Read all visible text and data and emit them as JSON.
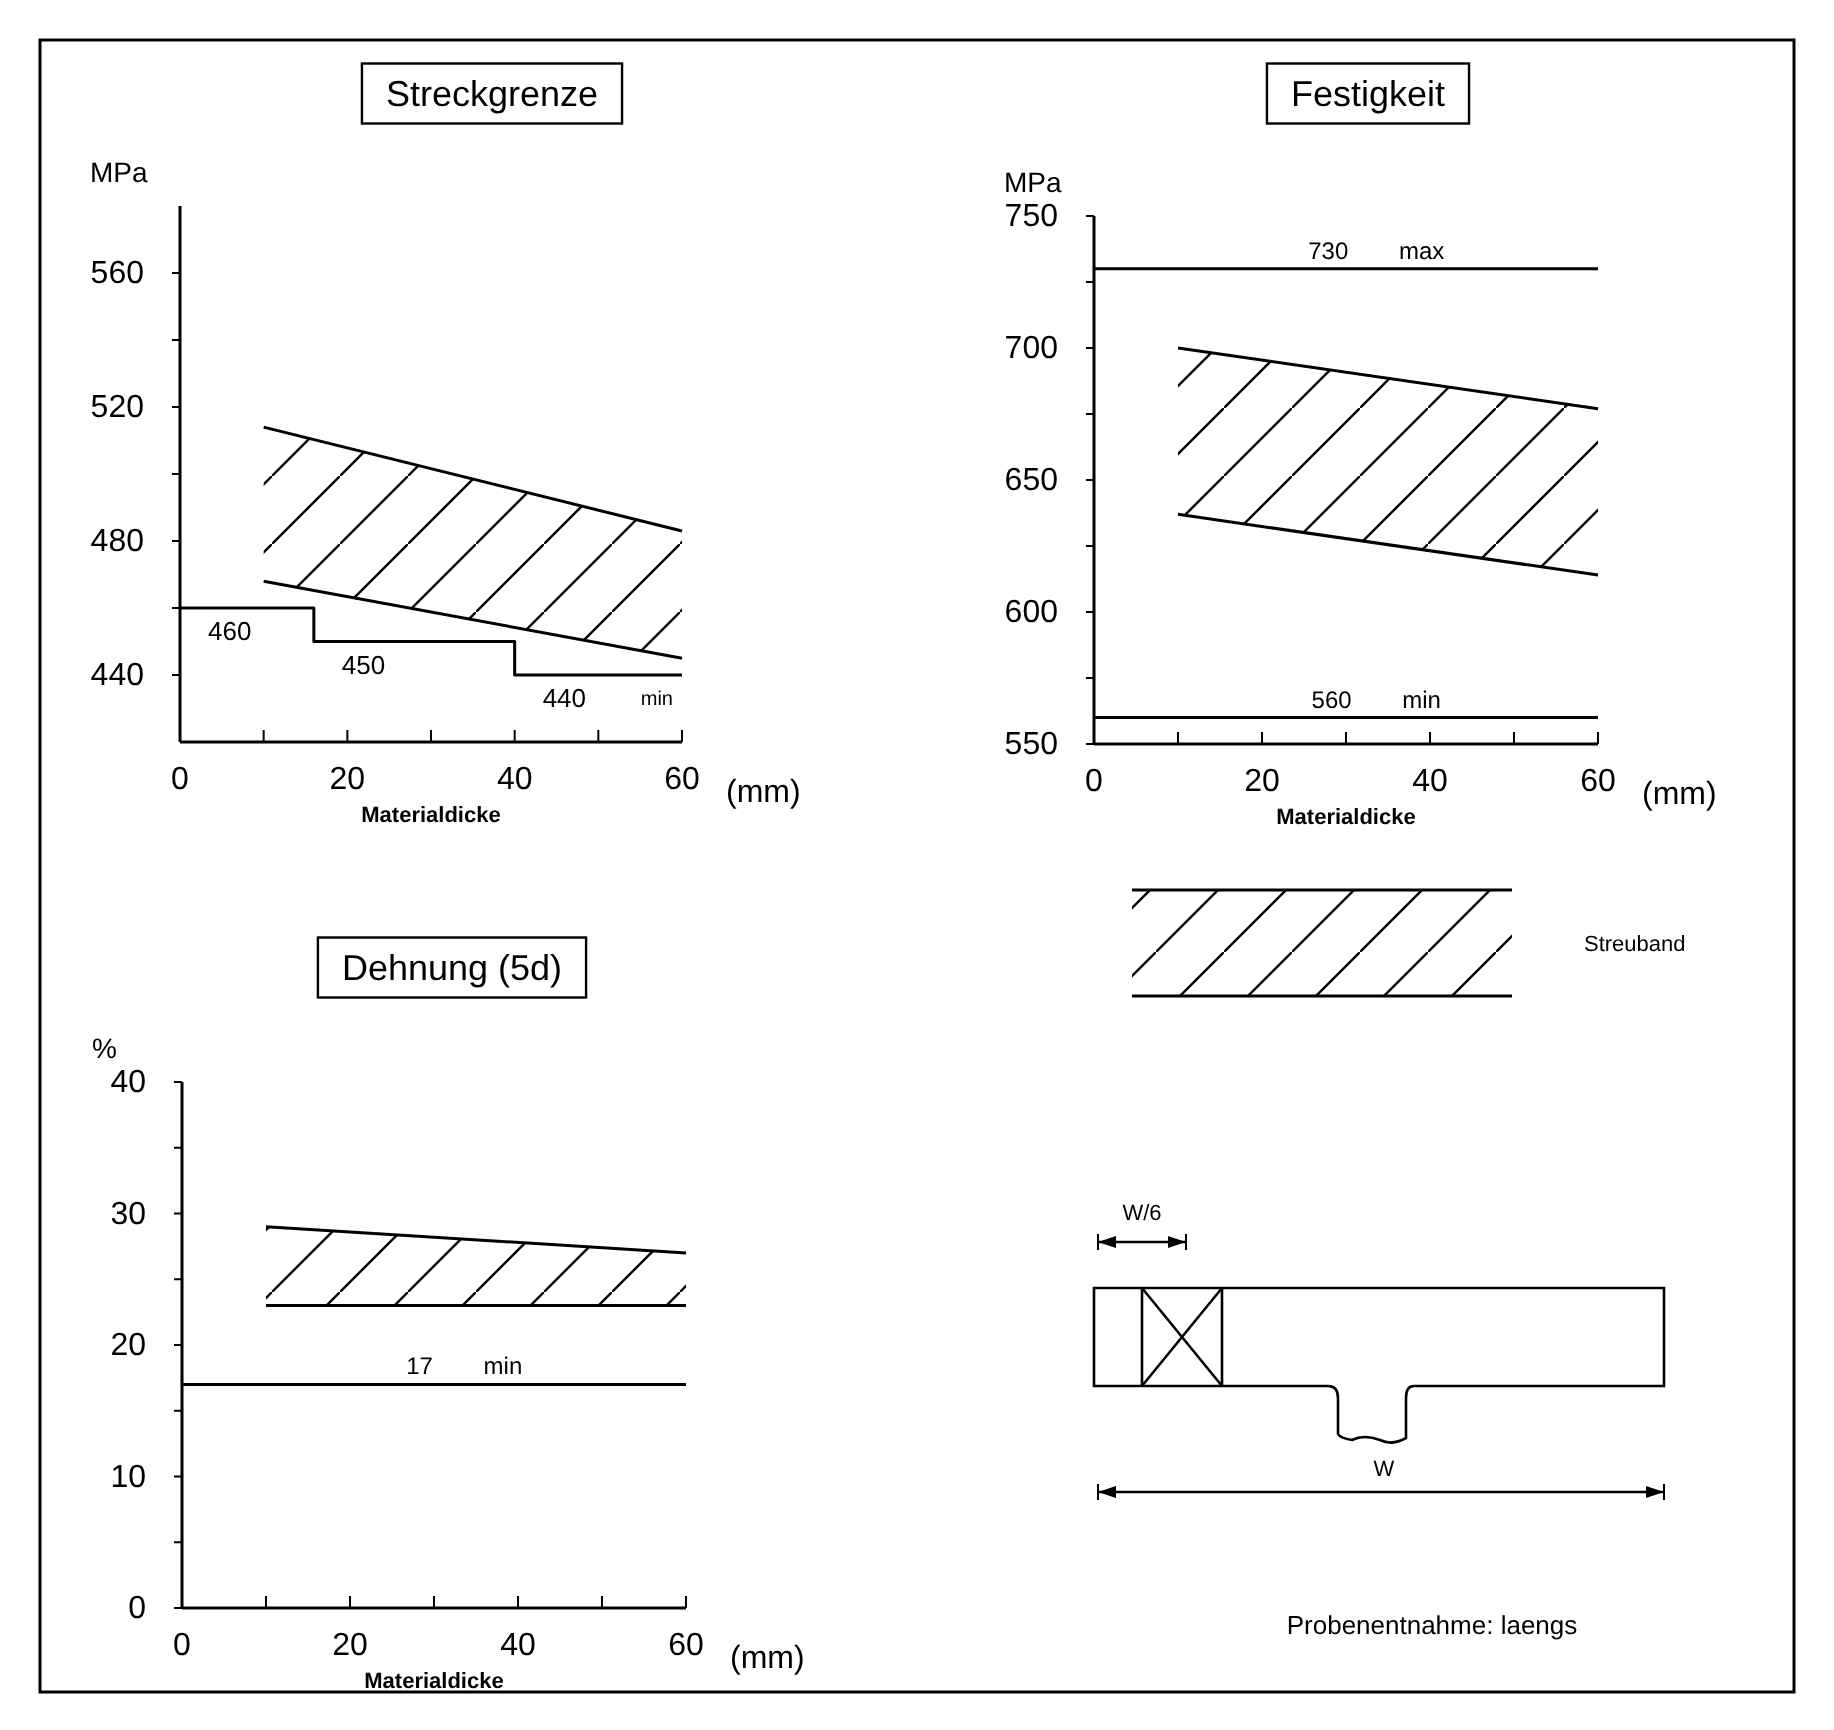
{
  "chart_data": [
    {
      "type": "line",
      "title": "Streckgrenze",
      "xlabel": "Materialdicke",
      "ylabel": "MPa",
      "xlim": [
        0,
        60
      ],
      "ylim": [
        420,
        580
      ],
      "xticks": [
        0,
        {
          "value": 10,
          "label": null
        },
        20,
        {
          "value": 30,
          "label": null
        },
        40,
        {
          "value": 50,
          "label": null
        },
        60
      ],
      "yticks": [
        440,
        {
          "value": 460,
          "label": null
        },
        480,
        {
          "value": 500,
          "label": null
        },
        520,
        {
          "value": 540,
          "label": null
        },
        560
      ],
      "series": [
        {
          "type": "line",
          "color": "#000000",
          "x": [
            10,
            60
          ],
          "values": [
            514,
            483
          ]
        },
        {
          "type": "line",
          "color": "#000000",
          "x": [
            10,
            60
          ],
          "values": [
            468,
            445
          ]
        },
        {
          "type": "step",
          "color": "#000000",
          "x": [
            0,
            16,
            40,
            60
          ],
          "values": [
            460,
            450,
            440,
            440
          ],
          "value_labels": [
            "460",
            "450",
            "440",
            null
          ]
        }
      ],
      "annotations": [
        "(mm)",
        {
          "text": "min",
          "x": 57,
          "y": 440
        }
      ]
    },
    {
      "type": "line",
      "title": "Festigkeit",
      "xlabel": "Materialdicke",
      "ylabel": "MPa",
      "xlim": [
        0,
        60
      ],
      "ylim": [
        550,
        750
      ],
      "xticks": [
        0,
        {
          "value": 10,
          "label": null
        },
        20,
        {
          "value": 30,
          "label": null
        },
        40,
        {
          "value": 50,
          "label": null
        },
        60
      ],
      "yticks": [
        550,
        {
          "value": 575,
          "label": null
        },
        600,
        {
          "value": 625,
          "label": null
        },
        650,
        {
          "value": 675,
          "label": null
        },
        700,
        {
          "value": 725,
          "label": null
        },
        750
      ],
      "series": [
        {
          "type": "line",
          "color": "#000000",
          "x": [
            10,
            60
          ],
          "values": [
            700,
            677
          ]
        },
        {
          "type": "line",
          "color": "#000000",
          "x": [
            10,
            60
          ],
          "values": [
            637,
            614
          ]
        }
      ],
      "ref_lines": [
        {
          "axis": "y",
          "value": 730,
          "label": "730 max"
        },
        {
          "axis": "y",
          "value": 560,
          "label": "560 min"
        }
      ],
      "annotations": [
        "(mm)",
        "Streuband"
      ]
    },
    {
      "type": "line",
      "title": "Dehnung (5d)",
      "xlabel": "Materialdicke",
      "ylabel": "%",
      "xlim": [
        0,
        60
      ],
      "ylim": [
        0,
        40
      ],
      "xticks": [
        0,
        {
          "value": 10,
          "label": null
        },
        20,
        {
          "value": 30,
          "label": null
        },
        40,
        {
          "value": 50,
          "label": null
        },
        60
      ],
      "yticks": [
        0,
        {
          "value": 5,
          "label": null
        },
        10,
        {
          "value": 15,
          "label": null
        },
        20,
        {
          "value": 25,
          "label": null
        },
        30,
        {
          "value": 35,
          "label": null
        },
        40
      ],
      "series": [
        {
          "type": "line",
          "color": "#000000",
          "x": [
            10,
            60
          ],
          "values": [
            29,
            27
          ]
        },
        {
          "type": "line",
          "color": "#000000",
          "x": [
            10,
            60
          ],
          "values": [
            23,
            23
          ]
        }
      ],
      "ref_lines": [
        {
          "axis": "y",
          "value": 17,
          "label": "17 min"
        }
      ],
      "annotations": [
        "(mm)"
      ]
    },
    {
      "type": "other",
      "annotations": [
        "W/6",
        "W",
        "Probenentnahme: laengs"
      ]
    }
  ]
}
